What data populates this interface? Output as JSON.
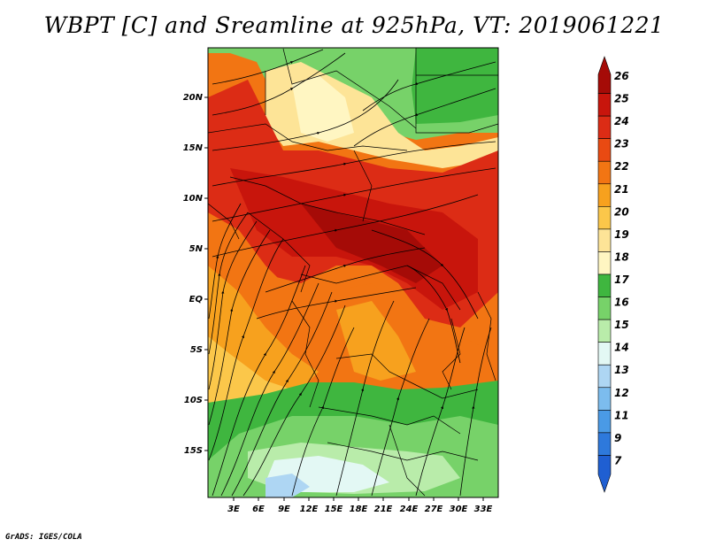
{
  "title": "WBPT [C] and Sreamline at 925hPa, VT: 2019061221",
  "credit": "GrADS: IGES/COLA",
  "map": {
    "lat_labels": [
      "20N",
      "15N",
      "10N",
      "5N",
      "EQ",
      "5S",
      "10S",
      "15S"
    ],
    "lon_labels": [
      "3E",
      "6E",
      "9E",
      "12E",
      "15E",
      "18E",
      "21E",
      "24E",
      "27E",
      "30E",
      "33E"
    ],
    "lat_range": [
      -19.5,
      24.5
    ],
    "lon_range": [
      0,
      29
    ],
    "field": "WBPT [C]",
    "overlay": "streamlines at 925hPa"
  },
  "colorbar": {
    "levels": [
      "26",
      "25",
      "24",
      "23",
      "22",
      "21",
      "20",
      "19",
      "18",
      "17",
      "16",
      "15",
      "14",
      "13",
      "12",
      "11",
      "9",
      "7"
    ],
    "colors": [
      "#a50b07",
      "#c8150c",
      "#dc2c15",
      "#e94a12",
      "#f27513",
      "#f7a11e",
      "#fbc74a",
      "#fde497",
      "#fff6c2",
      "#3fb63f",
      "#77d269",
      "#b9ecaa",
      "#e3f8f4",
      "#aed6f3",
      "#7cbcee",
      "#4a9ae6",
      "#2e79dc",
      "#1f5fd2"
    ]
  }
}
